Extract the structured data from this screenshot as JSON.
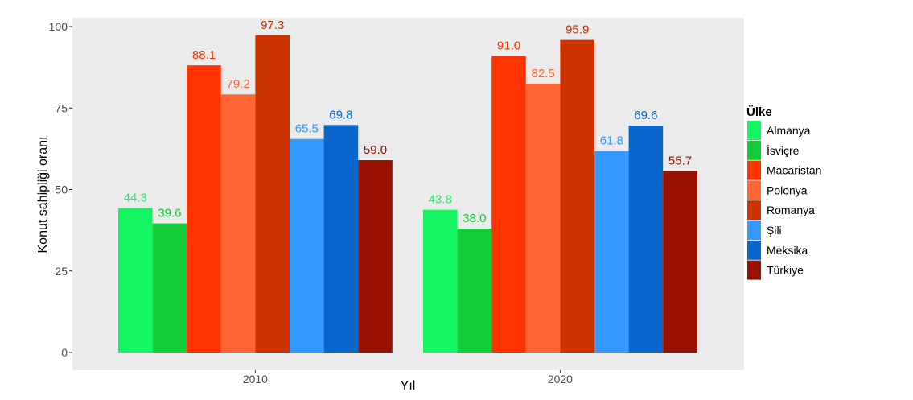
{
  "chart_data": {
    "type": "bar",
    "categories": [
      "2010",
      "2020"
    ],
    "xlabel": "Yıl",
    "ylabel": "Konut sahipliği oranı",
    "ylim": [
      0,
      100
    ],
    "yticks": [
      "0",
      "25",
      "50",
      "75",
      "100"
    ],
    "grid": false,
    "legend_title": "Ülke",
    "legend_position": "right",
    "series": [
      {
        "name": "Almanya",
        "color": "#13F562",
        "values": [
          44.3,
          43.8
        ],
        "labels": [
          "44.3",
          "43.8"
        ]
      },
      {
        "name": "İsviçre",
        "color": "#13CC37",
        "values": [
          39.6,
          38.0
        ],
        "labels": [
          "39.6",
          "38.0"
        ]
      },
      {
        "name": "Macaristan",
        "color": "#FF3300",
        "values": [
          88.1,
          91.0
        ],
        "labels": [
          "88.1",
          "91.0"
        ]
      },
      {
        "name": "Polonya",
        "color": "#FF6633",
        "values": [
          79.2,
          82.5
        ],
        "labels": [
          "79.2",
          "82.5"
        ]
      },
      {
        "name": "Romanya",
        "color": "#CC3300",
        "values": [
          97.3,
          95.9
        ],
        "labels": [
          "97.3",
          "95.9"
        ]
      },
      {
        "name": "Şili",
        "color": "#3399FF",
        "values": [
          65.5,
          61.8
        ],
        "labels": [
          "65.5",
          "61.8"
        ]
      },
      {
        "name": "Meksika",
        "color": "#0866CC",
        "values": [
          69.8,
          69.6
        ],
        "labels": [
          "69.8",
          "69.6"
        ]
      },
      {
        "name": "Türkiye",
        "color": "#991100",
        "values": [
          59.0,
          55.7
        ],
        "labels": [
          "59.0",
          "55.7"
        ]
      }
    ]
  }
}
